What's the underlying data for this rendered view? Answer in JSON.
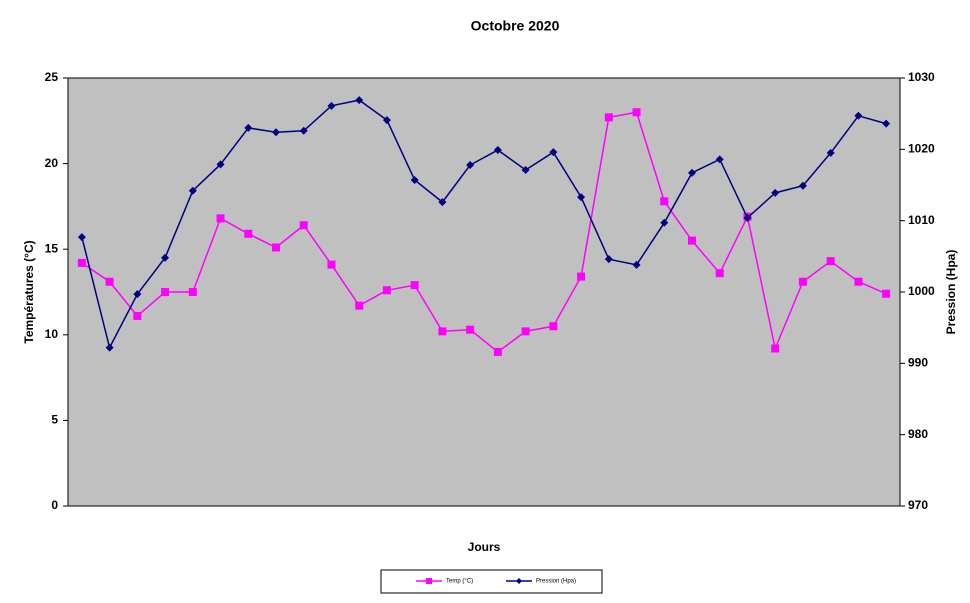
{
  "chart_data": {
    "type": "line",
    "title": "Octobre 2020",
    "x_label": "Jours",
    "y_label": "Températures (°C)",
    "y2_label": "Pression (Hpa)",
    "categories": [
      null,
      null,
      null,
      null,
      null,
      null,
      null,
      null,
      null,
      null,
      null,
      null,
      null,
      null,
      null,
      null,
      null,
      null,
      null,
      null,
      null,
      null,
      null,
      null,
      null,
      null,
      null,
      null,
      null,
      null
    ],
    "series": [
      {
        "name": "Temp (°C)",
        "color": "#ff00ff",
        "marker": "square",
        "values": [
          14.2,
          13.1,
          11.1,
          12.5,
          12.5,
          16.8,
          15.9,
          15.1,
          16.4,
          14.1,
          11.7,
          12.6,
          12.9,
          10.2,
          10.3,
          9.0,
          10.2,
          10.5,
          13.4,
          22.7,
          23.0,
          17.8,
          15.5,
          13.6,
          16.9,
          9.2,
          13.1,
          14.3,
          13.1,
          12.4
        ]
      },
      {
        "name": "Pression (Hpa)",
        "color": "#000080",
        "marker": "diamond",
        "axis": "y2",
        "values": [
          1007.7,
          992.2,
          999.7,
          1004.8,
          1014.2,
          1017.9,
          1023.0,
          1022.4,
          1022.6,
          1026.1,
          1026.9,
          1024.1,
          1015.7,
          1012.6,
          1017.8,
          1019.9,
          1017.1,
          1019.6,
          1013.3,
          1004.6,
          1003.8,
          1009.7,
          1016.7,
          1018.6,
          1010.4,
          1013.9,
          1014.9,
          1019.5,
          1024.7,
          1023.6
        ]
      }
    ],
    "ylim": [
      0,
      25
    ],
    "yticks": [
      0,
      5,
      10,
      15,
      20,
      25
    ],
    "y2lim": [
      970,
      1030
    ],
    "y2ticks": [
      970,
      980,
      990,
      1000,
      1010,
      1020,
      1030
    ],
    "plot_background": "#c0c0c0",
    "legend": "bottom"
  }
}
